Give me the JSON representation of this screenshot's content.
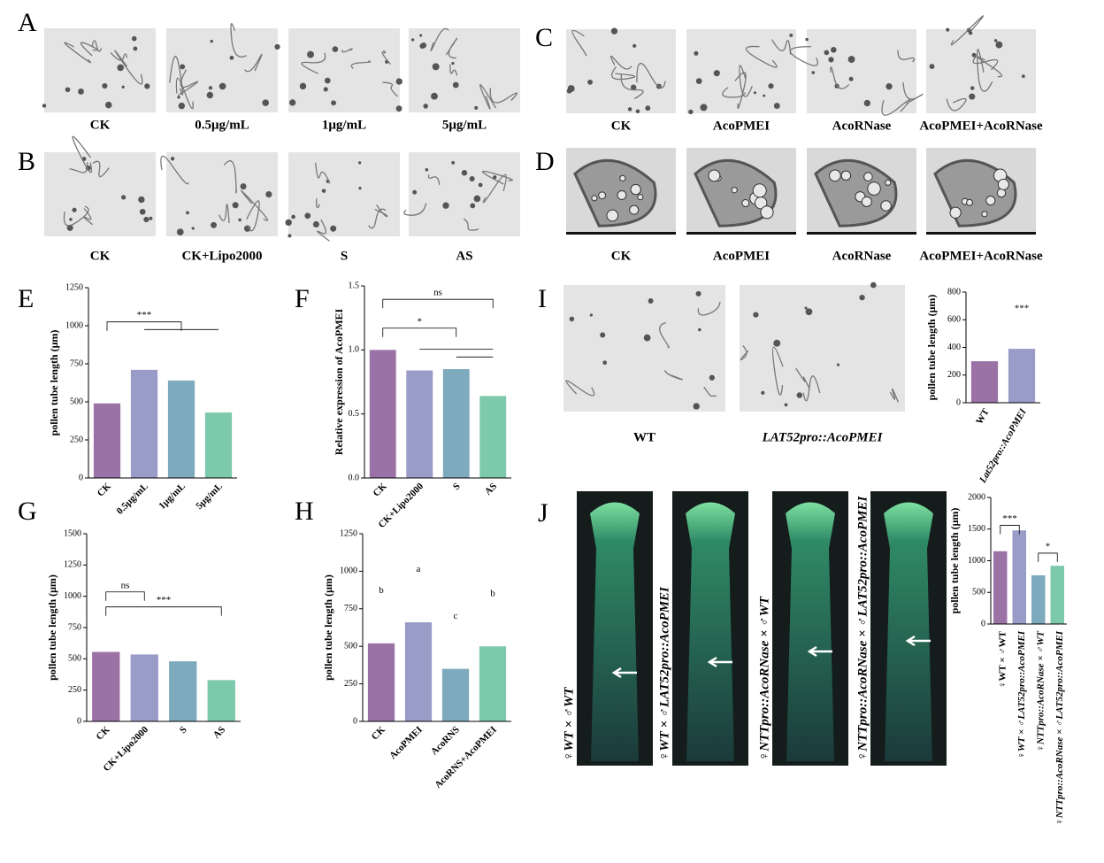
{
  "panel_letters": [
    "A",
    "B",
    "C",
    "D",
    "E",
    "F",
    "G",
    "H",
    "I",
    "J"
  ],
  "image_panels": {
    "A": [
      "CK",
      "0.5μg/mL",
      "1μg/mL",
      "5μg/mL"
    ],
    "B": [
      "CK",
      "CK+Lipo2000",
      "S",
      "AS"
    ],
    "C": [
      "CK",
      "AcoPMEI",
      "AcoRNase",
      "AcoPMEI+AcoRNase"
    ],
    "D": [
      "CK",
      "AcoPMEI",
      "AcoRNase",
      "AcoPMEI+AcoRNase"
    ],
    "I": [
      "WT",
      "LAT52pro::AcoPMEI"
    ],
    "J": [
      "♀WT × ♂WT",
      "♀WT × ♂LAT52pro::AcoPMEI",
      "♀NTTpro::AcoRNase × ♂WT",
      "♀NTTpro::AcoRNase × ♂LAT52pro::AcoPMEI"
    ]
  },
  "chart_data": [
    {
      "type": "bar",
      "ylabel": "pollen tube length (μm)",
      "categories": [
        "CK",
        "0.5μg/mL",
        "1μg/mL",
        "5μg/mL"
      ],
      "values": [
        490,
        710,
        640,
        430
      ],
      "colors": [
        "#9b72a6",
        "#9a9cc8",
        "#7eaabd",
        "#7cc9ab"
      ],
      "ylim": [
        0,
        1250
      ],
      "yticks": [
        0,
        250,
        500,
        750,
        1000,
        1250
      ],
      "annotations": [
        "***"
      ]
    },
    {
      "type": "bar",
      "ylabel": "Relative expression of AcoPMEI",
      "categories": [
        "CK",
        "CK+Lipo2000",
        "S",
        "AS"
      ],
      "values": [
        1.0,
        0.84,
        0.85,
        0.64
      ],
      "colors": [
        "#9b72a6",
        "#9a9cc8",
        "#7eaabd",
        "#7cc9ab"
      ],
      "ylim": [
        0,
        1.5
      ],
      "yticks": [
        {
          "value": 0,
          "label": "0.0"
        },
        {
          "value": 0.5,
          "label": "0.5"
        },
        {
          "value": 1,
          "label": "1.0"
        },
        {
          "value": 1.5,
          "label": "1.5"
        }
      ],
      "annotations": [
        "ns",
        "*"
      ]
    },
    {
      "type": "bar",
      "ylabel": "pollen tube length (μm)",
      "categories": [
        "CK",
        "CK+Lipo2000",
        "S",
        "AS"
      ],
      "values": [
        555,
        535,
        480,
        330
      ],
      "colors": [
        "#9b72a6",
        "#9a9cc8",
        "#7eaabd",
        "#7cc9ab"
      ],
      "ylim": [
        0,
        1500
      ],
      "yticks": [
        0,
        250,
        500,
        750,
        1000,
        1250,
        1500
      ],
      "annotations": [
        "ns",
        "***"
      ]
    },
    {
      "type": "bar",
      "ylabel": "pollen tube length (μm)",
      "categories": [
        "CK",
        "AcoPMEI",
        "AcoRNS",
        "AcoRNS+AcoPMEI"
      ],
      "values": [
        520,
        660,
        350,
        500
      ],
      "colors": [
        "#9b72a6",
        "#9a9cc8",
        "#7eaabd",
        "#7cc9ab"
      ],
      "ylim": [
        0,
        1250
      ],
      "yticks": [
        0,
        250,
        500,
        750,
        1000,
        1250
      ],
      "letters": [
        "b",
        "a",
        "c",
        "b"
      ]
    },
    {
      "type": "bar",
      "ylabel": "pollen tube length (μm)",
      "categories": [
        "WT",
        "Lat52pro::AcoPMEI"
      ],
      "values": [
        300,
        390
      ],
      "colors": [
        "#9b72a6",
        "#9a9cc8"
      ],
      "ylim": [
        0,
        800
      ],
      "yticks": [
        0,
        200,
        400,
        600,
        800
      ],
      "annotations": [
        "***"
      ]
    },
    {
      "type": "bar",
      "ylabel": "pollen tube length (μm)",
      "categories": [
        "♀WT × ♂WT",
        "♀WT × ♂LAT52pro::AcoPMEI",
        "♀NTTpro::AcoRNase × ♂WT",
        "♀NTTpro::AcoRNase × ♂LAT52pro::AcoPMEI"
      ],
      "values": [
        1150,
        1480,
        770,
        920
      ],
      "colors": [
        "#9b72a6",
        "#9a9cc8",
        "#7eaabd",
        "#7cc9ab"
      ],
      "ylim": [
        0,
        2000
      ],
      "yticks": [
        0,
        500,
        1000,
        1500,
        2000
      ],
      "annotations": [
        "***",
        "*"
      ]
    }
  ]
}
